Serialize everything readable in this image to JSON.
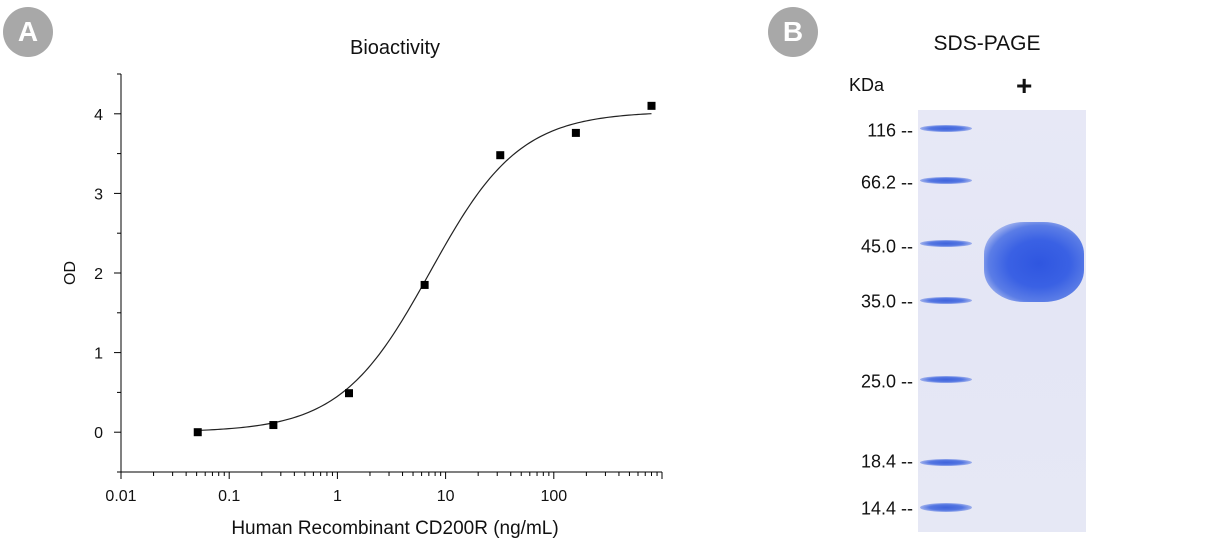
{
  "panels": {
    "a_label": "A",
    "b_label": "B"
  },
  "chart_data": {
    "type": "scatter",
    "title": "Bioactivity",
    "xlabel": "Human Recombinant CD200R (ng/mL)",
    "ylabel": "OD",
    "xscale": "log",
    "xlim": [
      0.01,
      1000
    ],
    "ylim": [
      -0.5,
      4.5
    ],
    "xticks": [
      "0.01",
      "0.1",
      "1",
      "10",
      "100"
    ],
    "yticks": [
      "0",
      "1",
      "2",
      "3",
      "4"
    ],
    "grid": false,
    "legend": "none",
    "series": [
      {
        "x": [
          0.0512,
          0.256,
          1.28,
          6.4,
          32,
          160,
          800
        ],
        "y": [
          0.0,
          0.09,
          0.49,
          1.85,
          3.48,
          3.76,
          4.1
        ],
        "marker": "square",
        "fit": "four-parameter logistic curve"
      }
    ],
    "colors": {
      "points": "#000000",
      "curve": "#222222",
      "axes": "#000000"
    }
  },
  "gel": {
    "title": "SDS-PAGE",
    "unit_label": "KDa",
    "lane_label": "+",
    "markers": [
      "116",
      "66.2",
      "45.0",
      "35.0",
      "25.0",
      "18.4",
      "14.4"
    ],
    "band_color": "#3f63dc",
    "background_color": "#e5e7f5"
  }
}
